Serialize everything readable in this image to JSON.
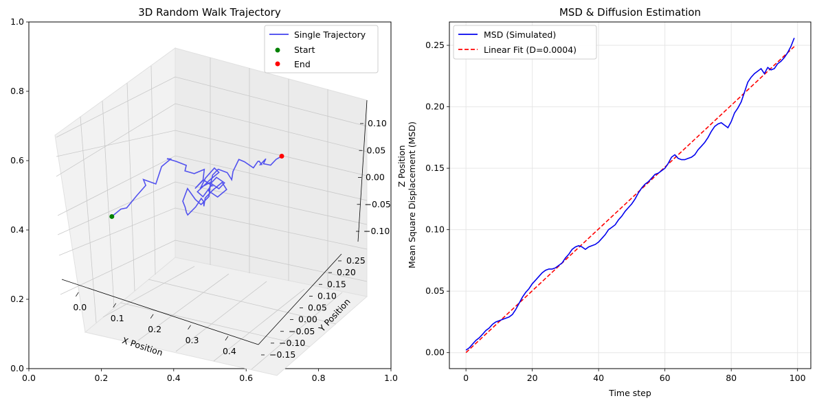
{
  "chart_data": [
    {
      "type": "line",
      "subtype": "3d",
      "title": "3D Random Walk Trajectory",
      "xlabel": "X Position",
      "ylabel": "Y Position",
      "zlabel": "Z Position",
      "outer_axes": {
        "xlim": [
          0.0,
          1.0
        ],
        "ylim": [
          0.0,
          1.0
        ],
        "xticks": [
          "0.0",
          "0.2",
          "0.4",
          "0.6",
          "0.8",
          "1.0"
        ],
        "yticks": [
          "0.0",
          "0.2",
          "0.4",
          "0.6",
          "0.8",
          "1.0"
        ]
      },
      "xticks": [
        "0.0",
        "0.1",
        "0.2",
        "0.3",
        "0.4"
      ],
      "yticks": [
        "−0.15",
        "−0.10",
        "−0.05",
        "0.00",
        "0.05",
        "0.10",
        "0.15",
        "0.20",
        "0.25"
      ],
      "zticks": [
        "−0.10",
        "−0.05",
        "0.00",
        "0.05",
        "0.10"
      ],
      "legend": {
        "placement": "top-right",
        "entries": [
          {
            "label": "Single Trajectory",
            "color": "#4040ee",
            "marker": "line"
          },
          {
            "label": "Start",
            "color": "#008000",
            "marker": "dot"
          },
          {
            "label": "End",
            "color": "#ff0000",
            "marker": "dot"
          }
        ]
      },
      "series": [
        {
          "name": "Single Trajectory",
          "color": "#4040ee",
          "x": [
            0.05,
            0.07,
            0.06,
            0.09,
            0.11,
            0.12,
            0.14,
            0.13,
            0.15,
            0.18,
            0.17,
            0.2,
            0.22,
            0.21,
            0.24,
            0.26,
            0.25,
            0.23,
            0.25,
            0.27,
            0.26,
            0.24,
            0.26,
            0.28,
            0.27,
            0.25,
            0.24,
            0.26,
            0.28,
            0.3,
            0.29,
            0.27,
            0.28,
            0.3,
            0.32,
            0.31,
            0.29,
            0.28,
            0.3,
            0.33,
            0.34,
            0.32,
            0.31,
            0.33,
            0.35,
            0.36,
            0.34,
            0.33,
            0.35,
            0.37,
            0.38,
            0.36,
            0.35,
            0.37,
            0.39,
            0.4,
            0.38,
            0.37,
            0.39,
            0.41,
            0.42,
            0.4,
            0.39,
            0.41,
            0.43,
            0.44,
            0.42,
            0.41,
            0.43,
            0.45
          ],
          "y": [
            -0.12,
            -0.1,
            -0.08,
            -0.06,
            -0.04,
            -0.05,
            -0.02,
            0.0,
            0.02,
            0.0,
            0.03,
            0.05,
            0.04,
            0.07,
            0.09,
            0.08,
            0.06,
            0.09,
            0.11,
            0.1,
            0.08,
            0.07,
            0.1,
            0.12,
            0.11,
            0.09,
            0.08,
            0.1,
            0.12,
            0.13,
            0.11,
            0.1,
            0.09,
            0.11,
            0.13,
            0.12,
            0.1,
            0.08,
            0.07,
            0.06,
            0.05,
            0.04,
            0.02,
            0.01,
            0.0,
            -0.01,
            0.01,
            0.02,
            0.03,
            0.04,
            0.06,
            0.07,
            0.08,
            0.09,
            0.11,
            0.12,
            0.13,
            0.15,
            0.16,
            0.18,
            0.19,
            0.2,
            0.21,
            0.2,
            0.21,
            0.2,
            0.22,
            0.23,
            0.24,
            0.25
          ],
          "z": [
            -0.09,
            -0.07,
            -0.08,
            -0.04,
            -0.01,
            0.02,
            -0.01,
            0.04,
            0.06,
            0.08,
            0.05,
            0.03,
            0.02,
            -0.01,
            0.0,
            -0.03,
            -0.05,
            -0.04,
            -0.07,
            -0.06,
            -0.09,
            -0.07,
            -0.04,
            -0.02,
            0.0,
            -0.03,
            -0.06,
            -0.05,
            -0.08,
            -0.06,
            -0.03,
            -0.05,
            -0.07,
            -0.1,
            -0.08,
            -0.05,
            -0.07,
            -0.09,
            -0.11,
            -0.08,
            -0.06,
            -0.09,
            -0.11,
            -0.09,
            -0.06,
            -0.03,
            0.0,
            -0.02,
            -0.05,
            -0.07,
            -0.05,
            -0.02,
            0.01,
            0.03,
            0.01,
            -0.02,
            0.0,
            0.03,
            0.02,
            -0.01,
            0.01,
            0.0,
            -0.02,
            -0.01,
            0.01,
            0.0,
            -0.02,
            -0.03,
            -0.01,
            0.0
          ]
        }
      ],
      "start": {
        "label": "Start",
        "color": "#008000",
        "x": 0.05,
        "y": -0.12,
        "z": -0.09
      },
      "end": {
        "label": "End",
        "color": "#ff0000",
        "x": 0.45,
        "y": 0.25,
        "z": 0.0
      }
    },
    {
      "type": "line",
      "title": "MSD & Diffusion Estimation",
      "xlabel": "Time step",
      "ylabel": "Mean Square Displacement (MSD)",
      "xlim": [
        -5,
        104
      ],
      "ylim": [
        -0.013,
        0.269
      ],
      "xticks": [
        0,
        20,
        40,
        60,
        80,
        100
      ],
      "yticks": [
        0.0,
        0.05,
        0.1,
        0.15,
        0.2,
        0.25
      ],
      "ytick_labels": [
        "0.00",
        "0.05",
        "0.10",
        "0.15",
        "0.20",
        "0.25"
      ],
      "grid": true,
      "legend": {
        "placement": "top-left",
        "entries": [
          {
            "label": "MSD (Simulated)",
            "color": "#0000ee",
            "style": "solid"
          },
          {
            "label": "Linear Fit (D=0.0004)",
            "color": "#ff0000",
            "style": "dashed"
          }
        ]
      },
      "series": [
        {
          "name": "MSD (Simulated)",
          "color": "#0000ee",
          "style": "solid",
          "x": [
            0,
            1,
            2,
            3,
            4,
            5,
            6,
            7,
            8,
            9,
            10,
            11,
            12,
            13,
            14,
            15,
            16,
            17,
            18,
            19,
            20,
            21,
            22,
            23,
            24,
            25,
            26,
            27,
            28,
            29,
            30,
            31,
            32,
            33,
            34,
            35,
            36,
            37,
            38,
            39,
            40,
            41,
            42,
            43,
            44,
            45,
            46,
            47,
            48,
            49,
            50,
            51,
            52,
            53,
            54,
            55,
            56,
            57,
            58,
            59,
            60,
            61,
            62,
            63,
            64,
            65,
            66,
            67,
            68,
            69,
            70,
            71,
            72,
            73,
            74,
            75,
            76,
            77,
            78,
            79,
            80,
            81,
            82,
            83,
            84,
            85,
            86,
            87,
            88,
            89,
            90,
            91,
            92,
            93,
            94,
            95,
            96,
            97,
            98,
            99
          ],
          "y": [
            0.002,
            0.004,
            0.007,
            0.01,
            0.012,
            0.015,
            0.018,
            0.02,
            0.023,
            0.025,
            0.026,
            0.027,
            0.028,
            0.029,
            0.031,
            0.035,
            0.04,
            0.045,
            0.049,
            0.052,
            0.056,
            0.059,
            0.062,
            0.065,
            0.067,
            0.068,
            0.068,
            0.069,
            0.071,
            0.073,
            0.077,
            0.08,
            0.084,
            0.086,
            0.087,
            0.086,
            0.084,
            0.086,
            0.087,
            0.088,
            0.09,
            0.093,
            0.096,
            0.1,
            0.102,
            0.104,
            0.108,
            0.111,
            0.115,
            0.118,
            0.121,
            0.125,
            0.13,
            0.134,
            0.137,
            0.139,
            0.142,
            0.145,
            0.146,
            0.148,
            0.15,
            0.154,
            0.159,
            0.161,
            0.158,
            0.157,
            0.157,
            0.158,
            0.159,
            0.161,
            0.165,
            0.168,
            0.171,
            0.175,
            0.18,
            0.184,
            0.186,
            0.187,
            0.185,
            0.183,
            0.188,
            0.195,
            0.199,
            0.204,
            0.212,
            0.22,
            0.224,
            0.227,
            0.229,
            0.231,
            0.227,
            0.232,
            0.23,
            0.231,
            0.235,
            0.237,
            0.24,
            0.244,
            0.249,
            0.256
          ]
        },
        {
          "name": "Linear Fit (D=0.0004)",
          "color": "#ff0000",
          "style": "dashed",
          "x": [
            0,
            99
          ],
          "y": [
            0.0,
            0.249
          ]
        }
      ]
    }
  ]
}
